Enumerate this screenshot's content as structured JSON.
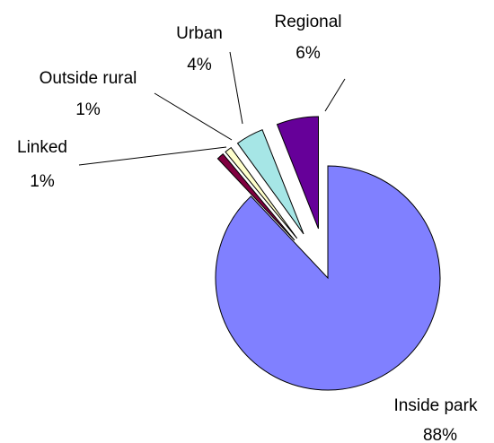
{
  "chart_data": {
    "type": "pie",
    "categories": [
      "Inside park",
      "Linked",
      "Outside rural",
      "Urban",
      "Regional"
    ],
    "values": [
      88,
      1,
      1,
      4,
      6
    ],
    "value_labels": [
      "88%",
      "1%",
      "1%",
      "4%",
      "6%"
    ],
    "colors": [
      "#8080ff",
      "#800040",
      "#ffffcc",
      "#a6e6e6",
      "#660099"
    ]
  }
}
